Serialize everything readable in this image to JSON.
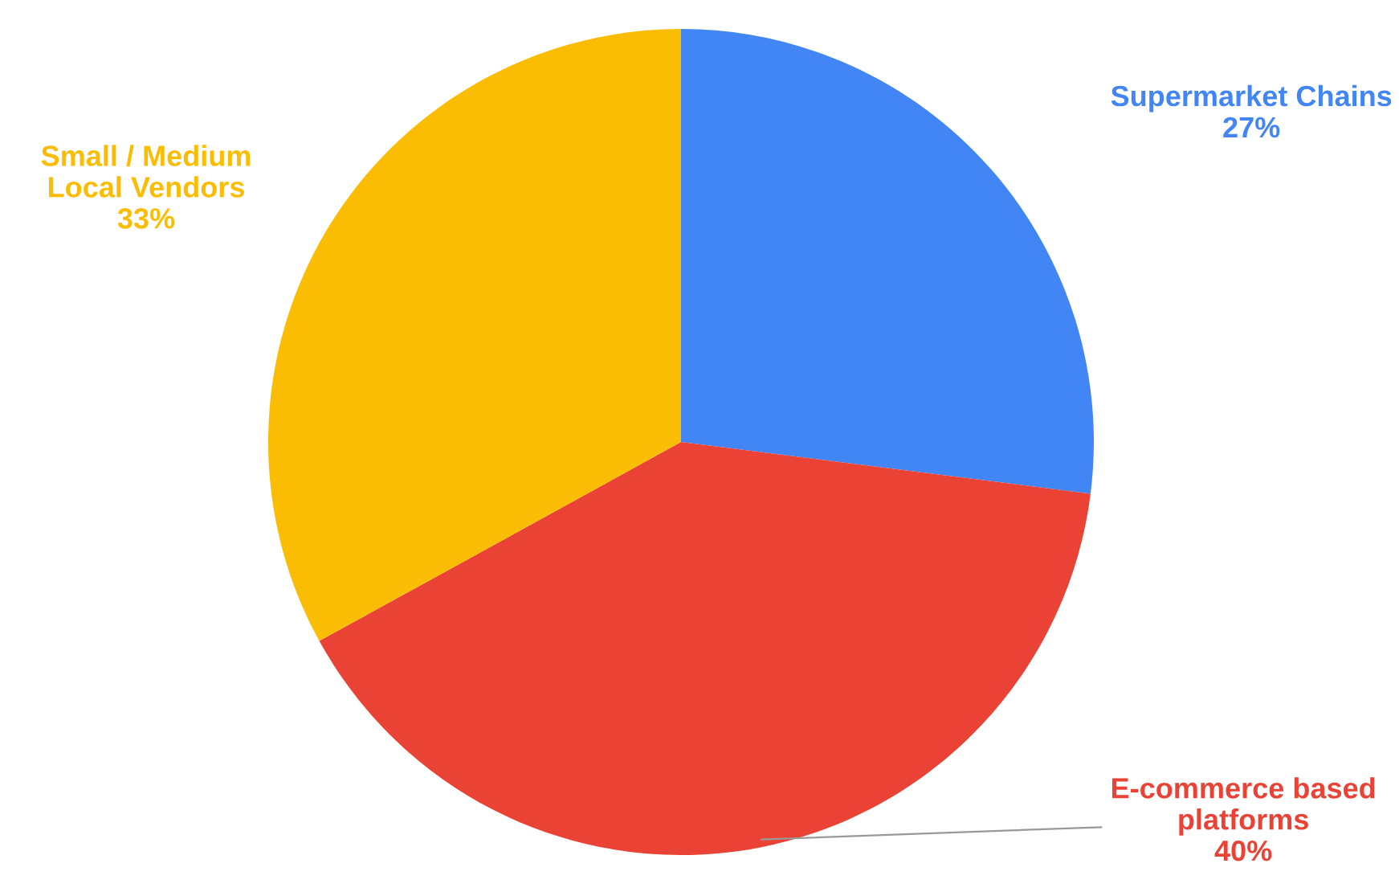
{
  "chart_data": {
    "type": "pie",
    "categories": [
      "Supermarket Chains",
      "E-commerce based platforms",
      "Small / Medium Local Vendors"
    ],
    "values": [
      27,
      40,
      33
    ],
    "colors": [
      "#4285f4",
      "#ea4335",
      "#fbbc04"
    ],
    "value_labels": [
      "27%",
      "40%",
      "33%"
    ],
    "legend": false
  }
}
